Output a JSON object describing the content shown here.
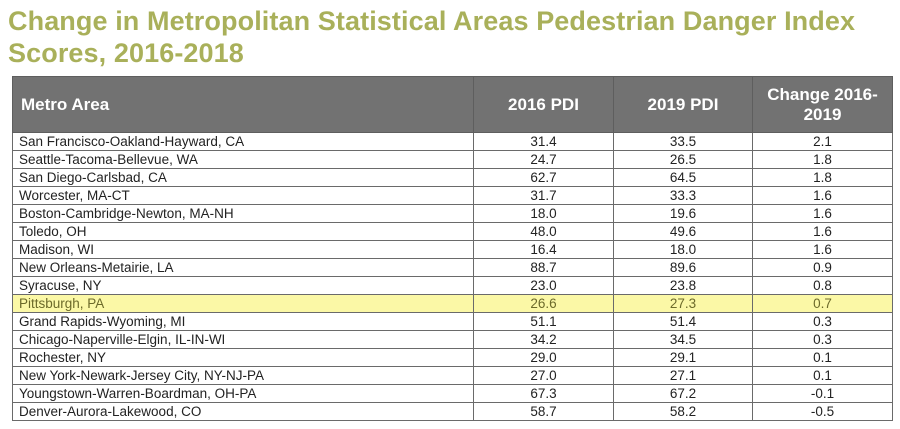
{
  "title": "Change in Metropolitan Statistical Areas Pedestrian Danger Index Scores, 2016-2018",
  "table": {
    "headers": {
      "metro": "Metro Area",
      "pdi_2016": "2016 PDI",
      "pdi_2019": "2019 PDI",
      "change": "Change 2016-2019"
    },
    "rows": [
      {
        "metro": "San Francisco-Oakland-Hayward, CA",
        "pdi_2016": "31.4",
        "pdi_2019": "33.5",
        "change": "2.1"
      },
      {
        "metro": "Seattle-Tacoma-Bellevue, WA",
        "pdi_2016": "24.7",
        "pdi_2019": "26.5",
        "change": "1.8"
      },
      {
        "metro": "San Diego-Carlsbad, CA",
        "pdi_2016": "62.7",
        "pdi_2019": "64.5",
        "change": "1.8"
      },
      {
        "metro": "Worcester, MA-CT",
        "pdi_2016": "31.7",
        "pdi_2019": "33.3",
        "change": "1.6"
      },
      {
        "metro": "Boston-Cambridge-Newton, MA-NH",
        "pdi_2016": "18.0",
        "pdi_2019": "19.6",
        "change": "1.6"
      },
      {
        "metro": "Toledo, OH",
        "pdi_2016": "48.0",
        "pdi_2019": "49.6",
        "change": "1.6"
      },
      {
        "metro": "Madison, WI",
        "pdi_2016": "16.4",
        "pdi_2019": "18.0",
        "change": "1.6"
      },
      {
        "metro": "New Orleans-Metairie, LA",
        "pdi_2016": "88.7",
        "pdi_2019": "89.6",
        "change": "0.9"
      },
      {
        "metro": "Syracuse, NY",
        "pdi_2016": "23.0",
        "pdi_2019": "23.8",
        "change": "0.8"
      },
      {
        "metro": "Pittsburgh, PA",
        "pdi_2016": "26.6",
        "pdi_2019": "27.3",
        "change": "0.7"
      },
      {
        "metro": "Grand Rapids-Wyoming, MI",
        "pdi_2016": "51.1",
        "pdi_2019": "51.4",
        "change": "0.3"
      },
      {
        "metro": "Chicago-Naperville-Elgin, IL-IN-WI",
        "pdi_2016": "34.2",
        "pdi_2019": "34.5",
        "change": "0.3"
      },
      {
        "metro": "Rochester, NY",
        "pdi_2016": "29.0",
        "pdi_2019": "29.1",
        "change": "0.1"
      },
      {
        "metro": "New York-Newark-Jersey City, NY-NJ-PA",
        "pdi_2016": "27.0",
        "pdi_2019": "27.1",
        "change": "0.1"
      },
      {
        "metro": "Youngstown-Warren-Boardman, OH-PA",
        "pdi_2016": "67.3",
        "pdi_2019": "67.2",
        "change": "-0.1"
      },
      {
        "metro": "Denver-Aurora-Lakewood, CO",
        "pdi_2016": "58.7",
        "pdi_2019": "58.2",
        "change": "-0.5"
      }
    ],
    "highlighted_metro": "Pittsburgh, PA"
  },
  "colors": {
    "title": "#a9b05a",
    "header_bg": "#727272",
    "header_text": "#ffffff",
    "highlight_bg": "#fbf8a6",
    "border": "#6a6a6a"
  }
}
